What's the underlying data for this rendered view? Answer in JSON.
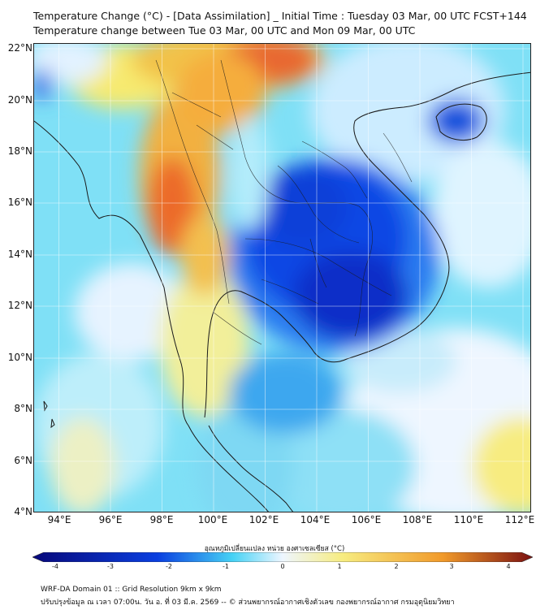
{
  "header": {
    "title_line1": "Temperature Change (°C) - [Data Assimilation] _ Initial Time : Tuesday 03 Mar, 00 UTC FCST+144",
    "title_line2": "Temperature change between Tue 03 Mar, 00 UTC and Mon 09 Mar, 00 UTC"
  },
  "axes": {
    "lat_labels": [
      "22°N",
      "20°N",
      "18°N",
      "16°N",
      "14°N",
      "12°N",
      "10°N",
      "8°N",
      "6°N",
      "4°N"
    ],
    "lon_labels": [
      "94°E",
      "96°E",
      "98°E",
      "100°E",
      "102°E",
      "104°E",
      "106°E",
      "108°E",
      "110°E",
      "112°E"
    ]
  },
  "colorbar": {
    "title": "อุณหภูมิเปลี่ยนแปลง หน่วย องศาเซลเซียส (°C)",
    "ticks": [
      "-4",
      "-3",
      "-2",
      "-1",
      "0",
      "1",
      "2",
      "3",
      "4"
    ],
    "colors": {
      "min": "#08087a",
      "cold": "#0a3fe0",
      "cool": "#46d2f5",
      "neutral": "#eef6ff",
      "warm": "#f7ec80",
      "hot": "#f19a2a",
      "max": "#7a1010"
    }
  },
  "map_regions": {
    "cold_core": "Thailand / Cambodia (-3 to -4°C)",
    "warm_band": "Myanmar / northern highlands (+2 to +3°C)"
  },
  "footer": {
    "line1": "WRF-DA Domain 01 :: Grid Resolution 9km x 9km",
    "line2": "ปรับปรุงข้อมูล ณ เวลา 07:00น. วัน อ. ที่ 03 มี.ค. 2569 -- © ส่วนพยากรณ์อากาศเชิงตัวเลข กองพยากรณ์อากาศ กรมอุตุนิยมวิทยา"
  }
}
